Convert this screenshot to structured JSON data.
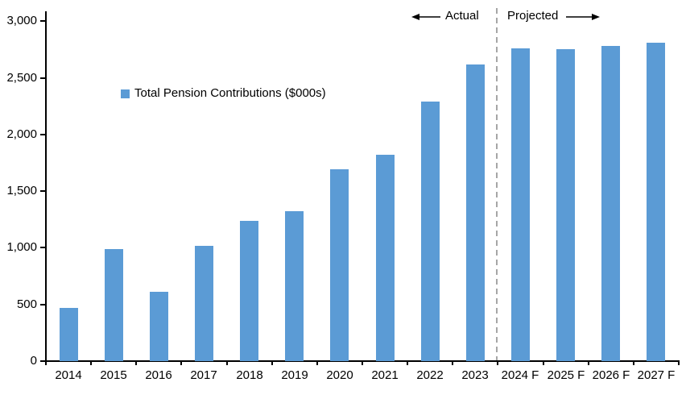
{
  "chart_data": {
    "type": "bar",
    "title": "",
    "legend_label": "Total Pension Contributions ($000s)",
    "categories": [
      "2014",
      "2015",
      "2016",
      "2017",
      "2018",
      "2019",
      "2020",
      "2021",
      "2022",
      "2023",
      "2024 F",
      "2025 F",
      "2026 F",
      "2027 F"
    ],
    "values": [
      470,
      990,
      610,
      1020,
      1240,
      1320,
      1690,
      1820,
      2290,
      2620,
      2760,
      2750,
      2780,
      2810
    ],
    "xlabel": "",
    "ylabel": "",
    "ylim": [
      0,
      3000
    ],
    "ytick_step": 500,
    "ytick_labels": [
      "0",
      "500",
      "1,000",
      "1,500",
      "2,000",
      "2,500",
      "3,000"
    ],
    "grid": false,
    "legend_position": "inside-upper-left",
    "annotations": {
      "actual_label": "Actual",
      "projected_label": "Projected",
      "divider_between": [
        "2023",
        "2024 F"
      ]
    },
    "colors": {
      "bar": "#5B9BD5",
      "axis": "#000000",
      "divider": "#A6A6A6",
      "text": "#000000"
    }
  }
}
